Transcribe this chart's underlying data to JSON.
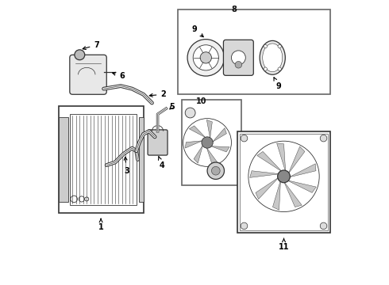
{
  "title": "",
  "bg_color": "#ffffff",
  "line_color": "#333333",
  "label_color": "#111111",
  "figsize": [
    4.9,
    3.6
  ],
  "dpi": 100
}
